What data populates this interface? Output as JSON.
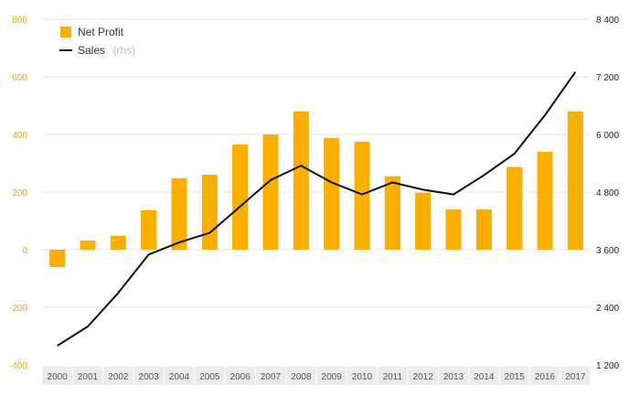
{
  "colors": {
    "bar": "#f9ae00",
    "line": "#111111",
    "left_axis": "#f5a800",
    "right_axis": "#222222",
    "grid": "#e6e6e6",
    "x_axis_band": "#ebebeb",
    "legend_suffix": "#bbbbbb"
  },
  "chart_data": {
    "type": "bar",
    "combo": "bar + line (dual axis)",
    "categories": [
      "2000",
      "2001",
      "2002",
      "2003",
      "2004",
      "2005",
      "2006",
      "2007",
      "2008",
      "2009",
      "2010",
      "2011",
      "2012",
      "2013",
      "2014",
      "2015",
      "2016",
      "2017"
    ],
    "series": [
      {
        "name": "Net Profit",
        "type": "bar",
        "axis": "left",
        "values": [
          -60,
          32,
          48,
          137,
          248,
          260,
          365,
          400,
          480,
          388,
          375,
          255,
          198,
          140,
          140,
          287,
          340,
          480
        ]
      },
      {
        "name": "Sales",
        "name_suffix": "(rhs)",
        "type": "line",
        "axis": "right",
        "values": [
          1600,
          2000,
          2700,
          3500,
          3750,
          3950,
          4500,
          5050,
          5350,
          5000,
          4750,
          5000,
          4850,
          4750,
          5150,
          5600,
          6400,
          7300
        ]
      }
    ],
    "left_axis": {
      "ylim": [
        -400,
        800
      ],
      "ticks": [
        800,
        600,
        400,
        200,
        0,
        -200,
        -400
      ],
      "tick_labels": [
        "800",
        "600",
        "400",
        "200",
        "0",
        "-200",
        "-400"
      ]
    },
    "right_axis": {
      "ylim": [
        1200,
        8400
      ],
      "ticks": [
        8400,
        7200,
        6000,
        4800,
        3600,
        2400,
        1200
      ],
      "tick_labels": [
        "8 400",
        "7 200",
        "6 000",
        "4 800",
        "3 600",
        "2 400",
        "1 200"
      ]
    },
    "grid": true,
    "legend_position": "top-left",
    "legend": [
      {
        "label": "Net Profit",
        "suffix": ""
      },
      {
        "label": "Sales",
        "suffix": "(rhs)"
      }
    ]
  }
}
